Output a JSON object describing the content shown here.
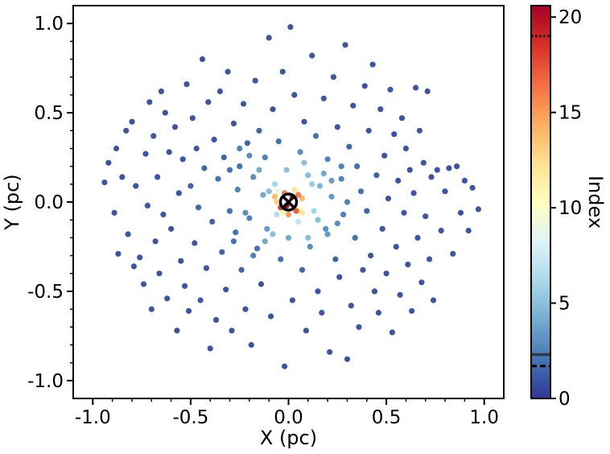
{
  "chart_data": {
    "type": "scatter",
    "title": "",
    "xlabel": "X (pc)",
    "ylabel": "Y (pc)",
    "xlim": [
      -1.1,
      1.1
    ],
    "ylim": [
      -1.1,
      1.1
    ],
    "x_ticks": [
      -1.0,
      -0.5,
      0.0,
      0.5,
      1.0
    ],
    "x_tick_labels": [
      "-1.0",
      "-0.5",
      "0.0",
      "0.5",
      "1.0"
    ],
    "y_ticks": [
      -1.0,
      -0.5,
      0.0,
      0.5,
      1.0
    ],
    "y_tick_labels": [
      "-1.0",
      "-0.5",
      "0.0",
      "0.5",
      "1.0"
    ],
    "grid": false,
    "colorbar": {
      "label": "Index",
      "range": [
        0,
        20.6
      ],
      "ticks": [
        0,
        5,
        10,
        15,
        20
      ],
      "tick_labels": [
        "0",
        "5",
        "10",
        "15",
        "20"
      ],
      "colormap": "RdYlBu_r",
      "markers": [
        {
          "value": 19.0,
          "style": "dotted"
        },
        {
          "value": 2.3,
          "style": "solid"
        },
        {
          "value": 1.7,
          "style": "dashed"
        }
      ]
    },
    "center_marker": {
      "x": 0.0,
      "y": 0.0,
      "symbol": "circled-x",
      "color": "#000000"
    },
    "points": [
      [
        -0.94,
        0.11,
        1
      ],
      [
        -0.92,
        0.22,
        1
      ],
      [
        -0.89,
        -0.06,
        1
      ],
      [
        -0.88,
        0.3,
        1
      ],
      [
        -0.87,
        -0.29,
        1
      ],
      [
        -0.85,
        0.14,
        1
      ],
      [
        -0.83,
        0.4,
        1
      ],
      [
        -0.82,
        -0.18,
        1
      ],
      [
        -0.8,
        0.45,
        1
      ],
      [
        -0.79,
        -0.36,
        1
      ],
      [
        -0.78,
        0.09,
        1
      ],
      [
        -0.76,
        -0.31,
        1
      ],
      [
        -0.74,
        -0.46,
        1
      ],
      [
        -0.73,
        0.27,
        1
      ],
      [
        -0.72,
        -0.02,
        1
      ],
      [
        -0.71,
        0.56,
        1
      ],
      [
        -0.7,
        -0.6,
        1
      ],
      [
        -0.69,
        0.37,
        1
      ],
      [
        -0.68,
        -0.22,
        1
      ],
      [
        -0.67,
        0.14,
        1
      ],
      [
        -0.66,
        -0.4,
        1
      ],
      [
        -0.65,
        0.62,
        1
      ],
      [
        -0.64,
        -0.07,
        1
      ],
      [
        -0.63,
        0.5,
        1
      ],
      [
        -0.62,
        -0.54,
        1
      ],
      [
        -0.61,
        0.28,
        1
      ],
      [
        -0.6,
        -0.15,
        1
      ],
      [
        -0.58,
        0.42,
        1
      ],
      [
        -0.57,
        -0.72,
        1
      ],
      [
        -0.56,
        0.05,
        1
      ],
      [
        -0.55,
        -0.33,
        1
      ],
      [
        -0.54,
        0.24,
        1
      ],
      [
        -0.53,
        -0.47,
        1
      ],
      [
        -0.52,
        0.66,
        1
      ],
      [
        -0.51,
        -0.61,
        1
      ],
      [
        -0.5,
        0.09,
        1.5
      ],
      [
        -0.49,
        0.47,
        1
      ],
      [
        -0.48,
        -0.23,
        1
      ],
      [
        -0.47,
        0.3,
        1
      ],
      [
        -0.46,
        -0.03,
        1.5
      ],
      [
        -0.45,
        -0.55,
        1
      ],
      [
        -0.44,
        0.8,
        1
      ],
      [
        -0.43,
        0.19,
        1.5
      ],
      [
        -0.42,
        -0.37,
        1
      ],
      [
        -0.41,
        0.56,
        1
      ],
      [
        -0.4,
        -0.82,
        1
      ],
      [
        -0.39,
        -0.11,
        1.5
      ],
      [
        -0.38,
        0.35,
        1
      ],
      [
        -0.37,
        -0.66,
        1
      ],
      [
        -0.36,
        0.13,
        2
      ],
      [
        -0.35,
        0.62,
        1
      ],
      [
        -0.34,
        -0.28,
        1.5
      ],
      [
        -0.33,
        0.25,
        1.5
      ],
      [
        -0.32,
        -0.49,
        1
      ],
      [
        -0.31,
        0.73,
        1
      ],
      [
        -0.3,
        -0.05,
        2
      ],
      [
        -0.29,
        -0.72,
        1
      ],
      [
        -0.28,
        0.44,
        1
      ],
      [
        -0.27,
        -0.17,
        2
      ],
      [
        -0.26,
        0.07,
        2.5
      ],
      [
        -0.25,
        0.2,
        2
      ],
      [
        -0.24,
        -0.38,
        1.5
      ],
      [
        -0.23,
        0.55,
        1
      ],
      [
        -0.22,
        -0.6,
        1
      ],
      [
        -0.21,
        0.33,
        1.5
      ],
      [
        -0.2,
        -0.09,
        2.5
      ],
      [
        -0.19,
        -0.8,
        1
      ],
      [
        -0.18,
        0.14,
        3
      ],
      [
        -0.17,
        0.68,
        1
      ],
      [
        -0.16,
        -0.26,
        2
      ],
      [
        -0.15,
        0.4,
        1.5
      ],
      [
        -0.14,
        -0.46,
        1
      ],
      [
        -0.13,
        0.04,
        4
      ],
      [
        -0.12,
        0.25,
        2.5
      ],
      [
        -0.11,
        -0.15,
        3.5
      ],
      [
        -0.1,
        0.92,
        1
      ],
      [
        -0.09,
        -0.64,
        1
      ],
      [
        -0.08,
        0.52,
        1
      ],
      [
        -0.07,
        0.1,
        6
      ],
      [
        -0.06,
        -0.07,
        6.5
      ],
      [
        -0.05,
        0.34,
        2
      ],
      [
        -0.04,
        -0.32,
        2
      ],
      [
        -0.03,
        0.73,
        1
      ],
      [
        -0.02,
        -0.92,
        1
      ],
      [
        -0.01,
        0.18,
        5
      ],
      [
        0.0,
        -0.2,
        4
      ],
      [
        0.01,
        0.98,
        1
      ],
      [
        0.02,
        -0.55,
        1
      ],
      [
        0.03,
        0.6,
        1
      ],
      [
        0.04,
        0.05,
        9
      ],
      [
        0.05,
        -0.11,
        7
      ],
      [
        0.06,
        0.28,
        3
      ],
      [
        0.07,
        -0.38,
        1.5
      ],
      [
        0.08,
        0.45,
        1
      ],
      [
        0.09,
        -0.72,
        1
      ],
      [
        0.1,
        0.15,
        5
      ],
      [
        0.11,
        -0.25,
        3
      ],
      [
        0.12,
        0.82,
        1
      ],
      [
        0.13,
        -0.05,
        6
      ],
      [
        0.14,
        0.37,
        2
      ],
      [
        0.15,
        -0.5,
        1
      ],
      [
        0.16,
        0.09,
        4.5
      ],
      [
        0.17,
        -0.62,
        1
      ],
      [
        0.18,
        0.58,
        1
      ],
      [
        0.19,
        -0.15,
        3
      ],
      [
        0.2,
        0.24,
        2.5
      ],
      [
        0.21,
        -0.84,
        1
      ],
      [
        0.22,
        0.03,
        3.5
      ],
      [
        0.23,
        0.7,
        1
      ],
      [
        0.24,
        -0.32,
        1.5
      ],
      [
        0.25,
        0.42,
        1
      ],
      [
        0.26,
        -0.42,
        1
      ],
      [
        0.27,
        0.13,
        2.5
      ],
      [
        0.28,
        -0.07,
        2.5
      ],
      [
        0.29,
        0.88,
        1
      ],
      [
        0.3,
        -0.88,
        1
      ],
      [
        0.31,
        0.31,
        1.5
      ],
      [
        0.32,
        -0.58,
        1
      ],
      [
        0.33,
        0.54,
        1
      ],
      [
        0.34,
        -0.2,
        2
      ],
      [
        0.35,
        0.2,
        2
      ],
      [
        0.36,
        -0.7,
        1
      ],
      [
        0.37,
        0.06,
        2
      ],
      [
        0.38,
        -0.38,
        1
      ],
      [
        0.39,
        0.65,
        1
      ],
      [
        0.4,
        -0.05,
        1.5
      ],
      [
        0.41,
        0.4,
        1
      ],
      [
        0.42,
        -0.3,
        1
      ],
      [
        0.43,
        0.77,
        1
      ],
      [
        0.44,
        -0.5,
        1
      ],
      [
        0.45,
        0.15,
        1.5
      ],
      [
        0.46,
        -0.62,
        1
      ],
      [
        0.47,
        0.52,
        1
      ],
      [
        0.48,
        -0.15,
        1
      ],
      [
        0.49,
        0.26,
        1
      ],
      [
        0.5,
        -0.4,
        1
      ],
      [
        0.51,
        0.02,
        1
      ],
      [
        0.52,
        0.63,
        1
      ],
      [
        0.53,
        -0.73,
        1
      ],
      [
        0.54,
        0.38,
        1
      ],
      [
        0.55,
        -0.25,
        1
      ],
      [
        0.56,
        0.12,
        1
      ],
      [
        0.57,
        -0.52,
        1
      ],
      [
        0.58,
        0.47,
        1
      ],
      [
        0.59,
        -0.06,
        1
      ],
      [
        0.6,
        0.3,
        1
      ],
      [
        0.61,
        -0.35,
        1
      ],
      [
        0.62,
        0.18,
        1
      ],
      [
        0.63,
        -0.61,
        1
      ],
      [
        0.64,
        0.05,
        1
      ],
      [
        0.65,
        0.64,
        1
      ],
      [
        0.66,
        -0.2,
        1
      ],
      [
        0.67,
        0.4,
        1
      ],
      [
        0.68,
        -0.45,
        1
      ],
      [
        0.69,
        0.22,
        1
      ],
      [
        0.7,
        -0.08,
        1
      ],
      [
        0.71,
        0.62,
        1
      ],
      [
        0.72,
        -0.32,
        1
      ],
      [
        0.73,
        0.14,
        1
      ],
      [
        0.74,
        -0.55,
        1
      ],
      [
        0.76,
        0.18,
        1
      ],
      [
        0.78,
        -0.16,
        1
      ],
      [
        0.8,
        0.06,
        1
      ],
      [
        0.82,
        0.19,
        1
      ],
      [
        0.84,
        -0.29,
        1
      ],
      [
        0.86,
        0.2,
        1
      ],
      [
        0.88,
        -0.06,
        1
      ],
      [
        0.9,
        0.12,
        1
      ],
      [
        0.92,
        -0.16,
        1
      ],
      [
        0.94,
        0.08,
        1
      ],
      [
        0.97,
        -0.04,
        1
      ],
      [
        -0.3,
        0.18,
        2
      ],
      [
        -0.28,
        -0.22,
        2
      ],
      [
        -0.25,
        0.3,
        2.5
      ],
      [
        -0.22,
        -0.06,
        3
      ],
      [
        -0.2,
        0.26,
        3
      ],
      [
        -0.18,
        -0.3,
        2.5
      ],
      [
        -0.15,
        0.18,
        4
      ],
      [
        -0.12,
        -0.22,
        4
      ],
      [
        -0.1,
        0.06,
        5
      ],
      [
        -0.08,
        -0.18,
        5
      ],
      [
        0.08,
        0.22,
        5
      ],
      [
        0.1,
        -0.2,
        5
      ],
      [
        0.12,
        0.1,
        5.5
      ],
      [
        0.15,
        -0.1,
        5
      ],
      [
        0.18,
        0.16,
        4
      ],
      [
        0.2,
        -0.18,
        3.5
      ],
      [
        0.22,
        0.12,
        3.5
      ],
      [
        0.25,
        -0.12,
        3
      ],
      [
        0.27,
        0.2,
        2.5
      ],
      [
        0.3,
        0.0,
        2.5
      ],
      [
        -0.05,
        0.06,
        9
      ],
      [
        0.06,
        -0.04,
        10
      ],
      [
        -0.03,
        -0.06,
        11
      ],
      [
        0.03,
        0.07,
        12
      ],
      [
        -0.06,
        0.0,
        13
      ],
      [
        0.07,
        0.02,
        14
      ],
      [
        0.0,
        -0.07,
        15
      ],
      [
        -0.02,
        0.05,
        16
      ],
      [
        0.04,
        -0.05,
        17
      ],
      [
        -0.04,
        -0.03,
        18
      ],
      [
        0.02,
        0.03,
        19
      ],
      [
        -0.01,
        -0.02,
        20
      ],
      [
        0.05,
        0.04,
        16
      ],
      [
        -0.07,
        0.03,
        14
      ],
      [
        0.07,
        -0.06,
        12
      ]
    ]
  }
}
